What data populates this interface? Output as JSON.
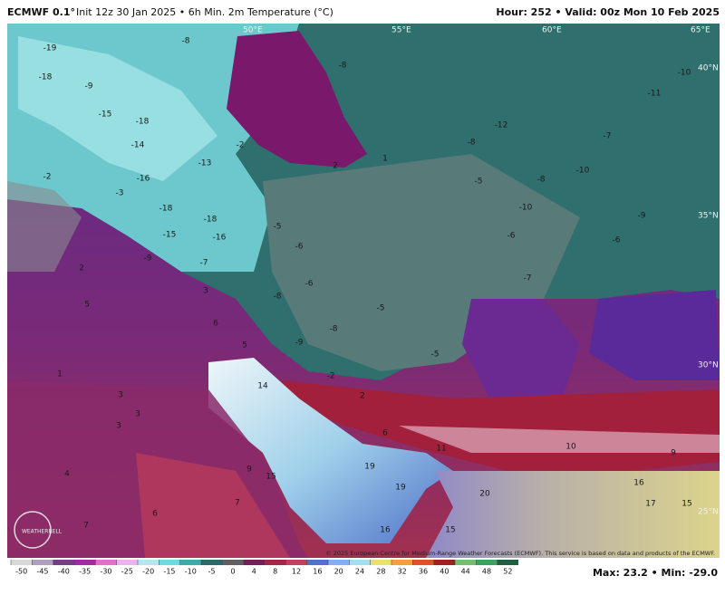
{
  "header": {
    "model": "ECMWF 0.1°",
    "description": "Init 12z 30 Jan 2025 • 6h Min. 2m Temperature (°C)",
    "valid": "Hour: 252 • Valid: 00z Mon 10 Feb 2025"
  },
  "geo_labels": [
    "50°E",
    "55°E",
    "60°E",
    "65°E",
    "40°N",
    "35°N",
    "30°N",
    "25°N"
  ],
  "map_labels": [
    -19,
    -18,
    -9,
    -15,
    -18,
    -14,
    -16,
    -13,
    -18,
    -18,
    -15,
    -16,
    -9,
    -7,
    -8,
    -2,
    -3,
    -2,
    2,
    1,
    -8,
    -10,
    -11,
    -12,
    -8,
    -7,
    -10,
    -8,
    -5,
    -10,
    -9,
    -6,
    -6,
    -7,
    -6,
    -5,
    -6,
    -8,
    -8,
    -5,
    -9,
    -5,
    -2,
    2,
    5,
    3,
    6,
    5,
    1,
    3,
    3,
    3,
    4,
    9,
    7,
    6,
    7,
    14,
    2,
    6,
    15,
    19,
    19,
    11,
    20,
    10,
    9,
    16,
    17,
    15,
    16,
    15
  ],
  "logo": "WEATHERBELL",
  "copyright": "© 2025 European Centre for Medium-Range Weather Forecasts (ECMWF). This service is based on data and products of the ECMWF.",
  "colorbar": [
    -50,
    -45,
    -40,
    -35,
    -30,
    -25,
    -20,
    -15,
    -10,
    -5,
    0,
    4,
    8,
    12,
    16,
    20,
    24,
    28,
    32,
    36,
    40,
    44,
    48,
    52
  ],
  "stats": "Max: 23.2 • Min: -29.0"
}
